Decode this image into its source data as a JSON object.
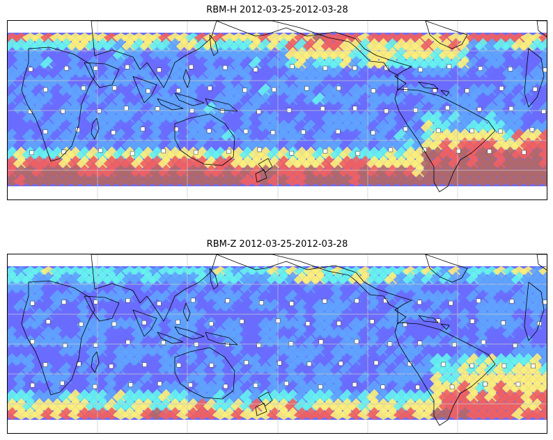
{
  "figure": {
    "panels": [
      {
        "id": "rbm-h",
        "title": "RBM-H 2012-03-25-2012-03-28"
      },
      {
        "id": "rbm-z",
        "title": "RBM-Z 2012-03-25-2012-03-28"
      }
    ]
  },
  "colors": {
    "low": "#6a6cff",
    "mid_low": "#5fa3ff",
    "mid": "#66f2ee",
    "mid_high": "#fdf07a",
    "high": "#f06060",
    "extreme": "#b06868",
    "coastline": "#000000",
    "gridline": "#c8c8c8"
  }
}
